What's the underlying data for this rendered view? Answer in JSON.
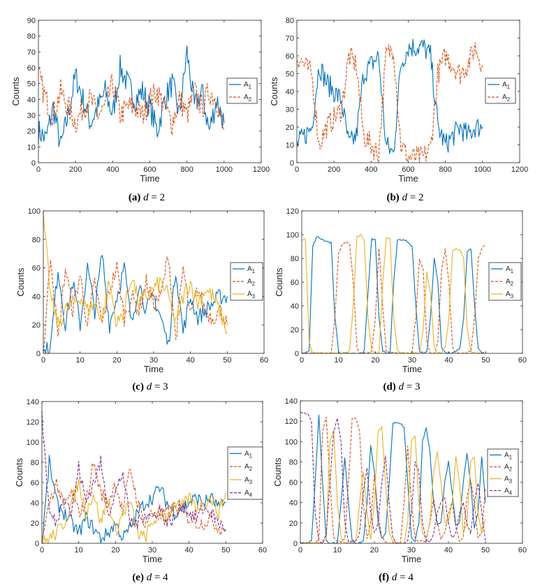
{
  "colors": {
    "A1": "#0072BD",
    "A2": "#D95319",
    "A3": "#EDB120",
    "A4": "#7E2F8E"
  },
  "chart_data": [
    {
      "type": "line",
      "id": "a",
      "caption_label": "(a)",
      "caption_math": "d = 2",
      "xlabel": "Time",
      "ylabel": "Counts",
      "xlim": [
        0,
        1200
      ],
      "ylim": [
        0,
        90
      ],
      "xticks": [
        0,
        200,
        400,
        600,
        800,
        1000,
        1200
      ],
      "yticks": [
        0,
        10,
        20,
        30,
        40,
        50,
        60,
        70,
        80,
        90
      ],
      "legend": "right",
      "x": [
        0,
        40,
        80,
        120,
        160,
        200,
        240,
        280,
        320,
        360,
        400,
        440,
        480,
        520,
        560,
        600,
        640,
        680,
        720,
        760,
        800,
        840,
        880,
        920,
        960,
        1000
      ],
      "series": [
        {
          "name": "A1",
          "dashed": false,
          "values": [
            20,
            15,
            35,
            10,
            30,
            55,
            40,
            25,
            35,
            45,
            30,
            60,
            50,
            40,
            45,
            35,
            20,
            40,
            50,
            30,
            70,
            35,
            45,
            20,
            40,
            25
          ]
        },
        {
          "name": "A2",
          "dashed": true,
          "values": [
            55,
            40,
            30,
            45,
            35,
            25,
            35,
            40,
            30,
            35,
            50,
            30,
            35,
            35,
            30,
            40,
            45,
            35,
            25,
            40,
            30,
            45,
            35,
            45,
            40,
            20
          ]
        }
      ]
    },
    {
      "type": "line",
      "id": "b",
      "caption_label": "(b)",
      "caption_math": "d = 2",
      "xlabel": "Time",
      "ylabel": "Counts",
      "xlim": [
        0,
        1200
      ],
      "ylim": [
        0,
        80
      ],
      "xticks": [
        0,
        200,
        400,
        600,
        800,
        1000,
        1200
      ],
      "yticks": [
        0,
        10,
        20,
        30,
        40,
        50,
        60,
        70,
        80
      ],
      "legend": "right",
      "x": [
        0,
        40,
        80,
        120,
        160,
        200,
        240,
        280,
        320,
        360,
        400,
        440,
        480,
        520,
        560,
        600,
        640,
        680,
        720,
        760,
        800,
        840,
        880,
        920,
        960,
        1000
      ],
      "series": [
        {
          "name": "A1",
          "dashed": false,
          "values": [
            10,
            15,
            20,
            55,
            45,
            40,
            35,
            10,
            15,
            50,
            55,
            60,
            10,
            5,
            55,
            65,
            65,
            65,
            60,
            20,
            10,
            15,
            20,
            15,
            20,
            20
          ]
        },
        {
          "name": "A2",
          "dashed": true,
          "values": [
            60,
            55,
            50,
            10,
            20,
            25,
            30,
            60,
            55,
            15,
            10,
            5,
            60,
            65,
            10,
            3,
            3,
            3,
            8,
            50,
            60,
            55,
            50,
            55,
            65,
            55
          ]
        }
      ]
    },
    {
      "type": "line",
      "id": "c",
      "caption_label": "(c)",
      "caption_math": "d = 3",
      "xlabel": "Time",
      "ylabel": "Counts",
      "xlim": [
        0,
        60
      ],
      "ylim": [
        0,
        100
      ],
      "xticks": [
        0,
        10,
        20,
        30,
        40,
        50,
        60
      ],
      "yticks": [
        0,
        20,
        40,
        60,
        80,
        100
      ],
      "legend": "right",
      "x": [
        0,
        2,
        4,
        6,
        8,
        10,
        12,
        14,
        16,
        18,
        20,
        22,
        24,
        26,
        28,
        30,
        32,
        34,
        36,
        38,
        40,
        42,
        44,
        46,
        48,
        50
      ],
      "series": [
        {
          "name": "A1",
          "dashed": false,
          "values": [
            0,
            5,
            60,
            20,
            50,
            20,
            60,
            30,
            70,
            20,
            40,
            60,
            20,
            50,
            30,
            40,
            25,
            5,
            60,
            15,
            40,
            25,
            30,
            35,
            40,
            40
          ]
        },
        {
          "name": "A2",
          "dashed": true,
          "values": [
            0,
            70,
            10,
            60,
            30,
            55,
            20,
            50,
            20,
            45,
            60,
            25,
            40,
            30,
            50,
            35,
            40,
            70,
            10,
            60,
            25,
            45,
            30,
            25,
            30,
            20
          ]
        },
        {
          "name": "A3",
          "dashed": false,
          "values": [
            95,
            40,
            20,
            30,
            35,
            40,
            30,
            35,
            25,
            50,
            20,
            30,
            55,
            35,
            40,
            45,
            50,
            40,
            20,
            40,
            50,
            35,
            45,
            40,
            30,
            15
          ]
        }
      ]
    },
    {
      "type": "line",
      "id": "d",
      "caption_label": "(d)",
      "caption_math": "d = 3",
      "xlabel": "Time",
      "ylabel": "Counts",
      "xlim": [
        0,
        60
      ],
      "ylim": [
        0,
        120
      ],
      "xticks": [
        0,
        10,
        20,
        30,
        40,
        50,
        60
      ],
      "yticks": [
        0,
        20,
        40,
        60,
        80,
        100,
        120
      ],
      "legend": "right",
      "x": [
        0,
        1,
        2,
        3,
        4,
        5,
        6,
        7,
        8,
        9,
        10,
        11,
        12,
        13,
        14,
        15,
        16,
        17,
        18,
        19,
        20,
        21,
        22,
        23,
        24,
        25,
        26,
        27,
        28,
        29,
        30,
        31,
        32,
        33,
        34,
        35,
        36,
        37,
        38,
        39,
        40,
        41,
        42,
        43,
        44,
        45,
        46,
        47,
        48,
        49,
        50
      ],
      "series": [
        {
          "name": "A1",
          "dashed": false,
          "values": [
            0,
            0,
            2,
            90,
            98,
            97,
            95,
            94,
            93,
            30,
            2,
            0,
            0,
            0,
            0,
            0,
            0,
            2,
            50,
            97,
            95,
            30,
            2,
            0,
            1,
            60,
            95,
            96,
            95,
            94,
            90,
            40,
            2,
            0,
            2,
            30,
            80,
            60,
            5,
            0,
            0,
            0,
            1,
            5,
            30,
            85,
            88,
            40,
            3,
            0,
            0
          ]
        },
        {
          "name": "A2",
          "dashed": true,
          "values": [
            0,
            0,
            0,
            0,
            0,
            0,
            0,
            0,
            0,
            30,
            85,
            92,
            94,
            93,
            60,
            5,
            0,
            0,
            0,
            2,
            30,
            88,
            40,
            2,
            0,
            0,
            0,
            0,
            0,
            0,
            2,
            30,
            80,
            70,
            10,
            0,
            0,
            10,
            70,
            88,
            60,
            5,
            0,
            0,
            0,
            0,
            2,
            30,
            80,
            88,
            92
          ]
        },
        {
          "name": "A3",
          "dashed": false,
          "values": [
            96,
            96,
            10,
            0,
            0,
            0,
            0,
            0,
            0,
            0,
            0,
            0,
            0,
            2,
            40,
            98,
            100,
            95,
            30,
            2,
            0,
            0,
            60,
            97,
            96,
            30,
            2,
            0,
            0,
            0,
            0,
            0,
            0,
            20,
            68,
            50,
            5,
            0,
            0,
            5,
            30,
            86,
            88,
            87,
            80,
            20,
            2,
            0,
            0,
            0,
            0
          ]
        }
      ]
    },
    {
      "type": "line",
      "id": "e",
      "caption_label": "(e)",
      "caption_math": "d = 4",
      "xlabel": "Time",
      "ylabel": "Counts",
      "xlim": [
        0,
        60
      ],
      "ylim": [
        0,
        140
      ],
      "xticks": [
        0,
        10,
        20,
        30,
        40,
        50,
        60
      ],
      "yticks": [
        0,
        20,
        40,
        60,
        80,
        100,
        120,
        140
      ],
      "legend": "right",
      "x": [
        0,
        2,
        4,
        6,
        8,
        10,
        12,
        14,
        16,
        18,
        20,
        22,
        24,
        26,
        28,
        30,
        32,
        34,
        36,
        38,
        40,
        42,
        44,
        46,
        48,
        50
      ],
      "series": [
        {
          "name": "A1",
          "dashed": false,
          "values": [
            0,
            80,
            40,
            30,
            20,
            10,
            25,
            15,
            5,
            10,
            20,
            5,
            15,
            30,
            40,
            45,
            55,
            40,
            30,
            35,
            40,
            45,
            40,
            45,
            35,
            40
          ]
        },
        {
          "name": "A2",
          "dashed": true,
          "values": [
            0,
            40,
            60,
            35,
            50,
            30,
            40,
            80,
            50,
            40,
            60,
            30,
            75,
            40,
            20,
            30,
            25,
            30,
            35,
            30,
            25,
            20,
            20,
            25,
            15,
            15
          ]
        },
        {
          "name": "A3",
          "dashed": false,
          "values": [
            0,
            5,
            10,
            20,
            40,
            60,
            30,
            50,
            20,
            45,
            10,
            30,
            40,
            10,
            5,
            20,
            30,
            25,
            40,
            35,
            45,
            35,
            40,
            45,
            30,
            50
          ]
        },
        {
          "name": "A4",
          "dashed": true,
          "values": [
            128,
            30,
            20,
            50,
            30,
            75,
            40,
            60,
            80,
            30,
            50,
            70,
            20,
            20,
            30,
            25,
            35,
            20,
            25,
            40,
            30,
            25,
            35,
            30,
            20,
            15
          ]
        }
      ]
    },
    {
      "type": "line",
      "id": "f",
      "caption_label": "(f)",
      "caption_math": "d = 4",
      "xlabel": "Time",
      "ylabel": "Counts",
      "xlim": [
        0,
        60
      ],
      "ylim": [
        0,
        140
      ],
      "xticks": [
        0,
        10,
        20,
        30,
        40,
        50,
        60
      ],
      "yticks": [
        0,
        20,
        40,
        60,
        80,
        100,
        120,
        140
      ],
      "legend": "right",
      "x": [
        0,
        1,
        2,
        3,
        4,
        5,
        6,
        7,
        8,
        9,
        10,
        11,
        12,
        13,
        14,
        15,
        16,
        17,
        18,
        19,
        20,
        21,
        22,
        23,
        24,
        25,
        26,
        27,
        28,
        29,
        30,
        31,
        32,
        33,
        34,
        35,
        36,
        37,
        38,
        39,
        40,
        41,
        42,
        43,
        44,
        45,
        46,
        47,
        48,
        49,
        50
      ],
      "series": [
        {
          "name": "A1",
          "dashed": false,
          "values": [
            0,
            0,
            0,
            2,
            60,
            125,
            60,
            2,
            0,
            0,
            0,
            40,
            83,
            40,
            2,
            0,
            0,
            2,
            40,
            95,
            70,
            20,
            5,
            10,
            60,
            118,
            118,
            117,
            115,
            60,
            5,
            2,
            20,
            100,
            113,
            90,
            40,
            18,
            20,
            60,
            80,
            50,
            18,
            20,
            60,
            88,
            60,
            15,
            30,
            86,
            40
          ]
        },
        {
          "name": "A2",
          "dashed": true,
          "values": [
            0,
            0,
            0,
            0,
            0,
            5,
            110,
            124,
            60,
            5,
            2,
            2,
            5,
            60,
            122,
            123,
            110,
            40,
            5,
            20,
            68,
            30,
            5,
            2,
            0,
            0,
            0,
            0,
            40,
            95,
            40,
            5,
            2,
            2,
            2,
            20,
            45,
            20,
            5,
            10,
            30,
            40,
            15,
            2,
            5,
            45,
            62,
            40,
            5,
            10,
            55
          ]
        },
        {
          "name": "A3",
          "dashed": false,
          "values": [
            0,
            0,
            0,
            0,
            0,
            0,
            0,
            5,
            100,
            112,
            40,
            5,
            0,
            0,
            0,
            2,
            40,
            70,
            30,
            5,
            40,
            110,
            114,
            60,
            10,
            2,
            0,
            0,
            0,
            20,
            100,
            106,
            40,
            10,
            5,
            20,
            70,
            90,
            60,
            20,
            20,
            40,
            86,
            60,
            10,
            20,
            80,
            85,
            30,
            10,
            24
          ]
        },
        {
          "name": "A4",
          "dashed": true,
          "values": [
            128,
            128,
            127,
            120,
            30,
            2,
            0,
            10,
            60,
            110,
            122,
            100,
            20,
            2,
            2,
            2,
            10,
            50,
            75,
            30,
            10,
            20,
            60,
            85,
            40,
            5,
            0,
            0,
            0,
            2,
            30,
            80,
            70,
            20,
            2,
            2,
            10,
            30,
            40,
            45,
            20,
            5,
            10,
            30,
            40,
            20,
            10,
            40,
            60,
            30,
            2
          ]
        }
      ]
    }
  ]
}
